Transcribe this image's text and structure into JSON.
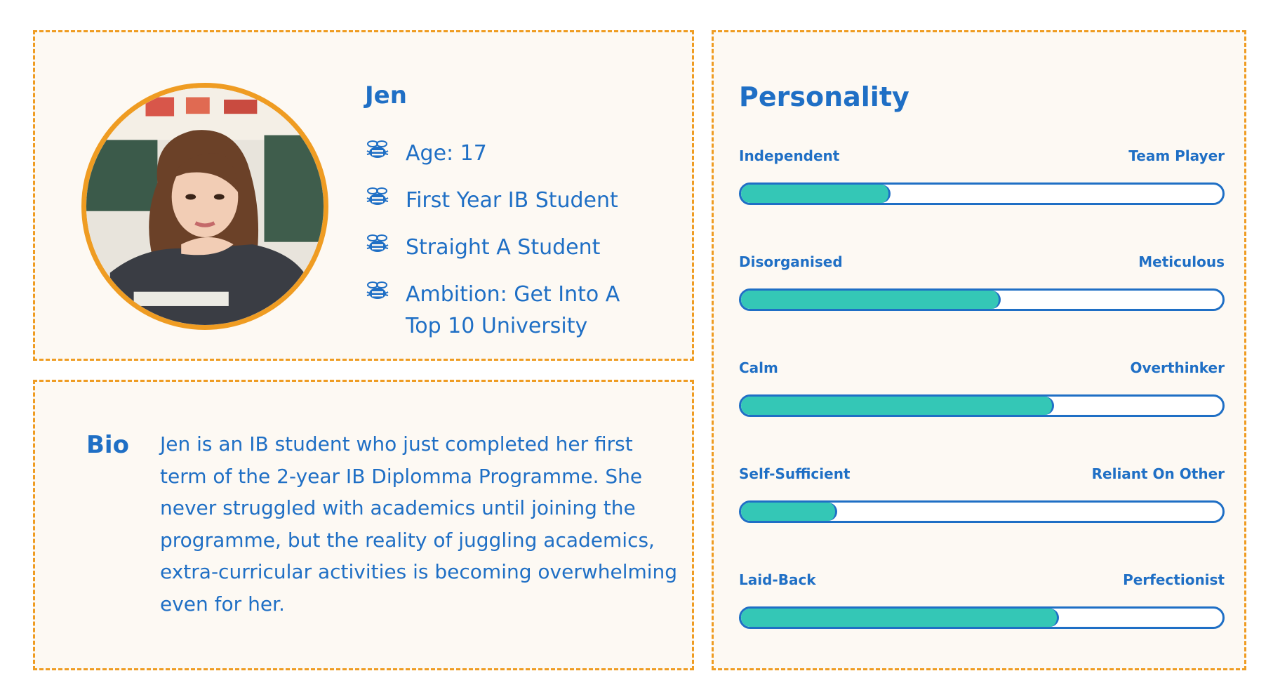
{
  "profile": {
    "name": "Jen",
    "avatar_icon": "student-photo",
    "facts": [
      {
        "icon": "bee-icon",
        "text": "Age: 17"
      },
      {
        "icon": "bee-icon",
        "text": "First Year IB Student"
      },
      {
        "icon": "bee-icon",
        "text": "Straight A Student"
      },
      {
        "icon": "bee-icon",
        "text": "Ambition: Get Into A Top 10 University"
      }
    ]
  },
  "bio": {
    "label": "Bio",
    "text": "Jen is an IB student who just completed her first term of the 2-year IB Diplomma Programme. She never struggled with academics until joining the programme, but the reality of juggling academics, extra-curricular activities is becoming overwhelming even for her."
  },
  "personality": {
    "title": "Personality",
    "traits": [
      {
        "left": "Independent",
        "right": "Team Player",
        "value": 0.31
      },
      {
        "left": "Disorganised",
        "right": "Meticulous",
        "value": 0.54
      },
      {
        "left": "Calm",
        "right": "Overthinker",
        "value": 0.65
      },
      {
        "left": "Self-Sufficient",
        "right": "Reliant On Other",
        "value": 0.2
      },
      {
        "left": "Laid-Back",
        "right": "Perfectionist",
        "value": 0.66
      }
    ]
  },
  "colors": {
    "accent": "#1f6fc5",
    "border": "#ef9c22",
    "fill": "#34c7b6",
    "card_bg": "#fdf9f3"
  }
}
